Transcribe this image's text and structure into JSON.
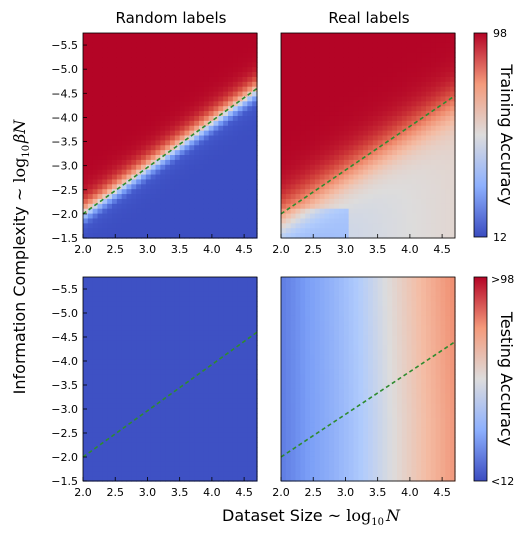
{
  "figure": {
    "xlabel_text": "Dataset Size ~ ",
    "xlabel_math": "log",
    "xlabel_sub": "10",
    "xlabel_var": "N",
    "ylabel_text": "Information Complexity ~ ",
    "ylabel_math": "log",
    "ylabel_sub": "10",
    "ylabel_var": "βN"
  },
  "chart_data": [
    {
      "type": "heatmap",
      "id": "random-training",
      "title": "Random labels",
      "x_range": [
        2.0,
        4.7
      ],
      "y_range": [
        -1.5,
        -5.75
      ],
      "xticks": [
        "2.0",
        "2.5",
        "3.0",
        "3.5",
        "4.0",
        "4.5"
      ],
      "yticks": [
        "-1.5",
        "-2.0",
        "-2.5",
        "-3.0",
        "-3.5",
        "-4.0",
        "-4.5",
        "-5.0",
        "-5.5"
      ],
      "boundary_line": {
        "x": [
          2.0,
          4.7
        ],
        "y": [
          -2.0,
          -4.6
        ]
      },
      "pattern": "high accuracy above diagonal, low below"
    },
    {
      "type": "heatmap",
      "id": "real-training",
      "title": "Real labels",
      "x_range": [
        2.0,
        4.7
      ],
      "y_range": [
        -1.5,
        -5.75
      ],
      "xticks": [
        "2.0",
        "2.5",
        "3.0",
        "3.5",
        "4.0",
        "4.5"
      ],
      "boundary_line": {
        "x": [
          2.0,
          4.7
        ],
        "y": [
          -2.0,
          -4.45
        ]
      },
      "pattern": "high accuracy above diagonal, medium below"
    },
    {
      "type": "heatmap",
      "id": "random-testing",
      "title": "",
      "x_range": [
        2.0,
        4.7
      ],
      "y_range": [
        -1.5,
        -5.75
      ],
      "xticks": [
        "2.0",
        "2.5",
        "3.0",
        "3.5",
        "4.0",
        "4.5"
      ],
      "yticks": [
        "-1.5",
        "-2.0",
        "-2.5",
        "-3.0",
        "-3.5",
        "-4.0",
        "-4.5",
        "-5.0",
        "-5.5"
      ],
      "boundary_line": {
        "x": [
          2.0,
          4.7
        ],
        "y": [
          -2.0,
          -4.6
        ]
      },
      "pattern": "uniformly low"
    },
    {
      "type": "heatmap",
      "id": "real-testing",
      "title": "",
      "x_range": [
        2.0,
        4.7
      ],
      "y_range": [
        -1.5,
        -5.75
      ],
      "xticks": [
        "2.0",
        "2.5",
        "3.0",
        "3.5",
        "4.0",
        "4.5"
      ],
      "boundary_line": {
        "x": [
          2.0,
          4.7
        ],
        "y": [
          -2.0,
          -4.4
        ]
      },
      "pattern": "increases with dataset size"
    }
  ],
  "colorbars": [
    {
      "id": "training",
      "label": "Training Accuracy",
      "top_tick": "98",
      "bottom_tick": "12",
      "colormap": "coolwarm"
    },
    {
      "id": "testing",
      "label": "Testing Accuracy",
      "top_tick": ">98",
      "bottom_tick": "<12",
      "colormap": "coolwarm"
    }
  ],
  "colors": {
    "low": "#3b4cc0",
    "mid": "#dddcdc",
    "high": "#b40426",
    "boundary": "#2e8b2e"
  }
}
